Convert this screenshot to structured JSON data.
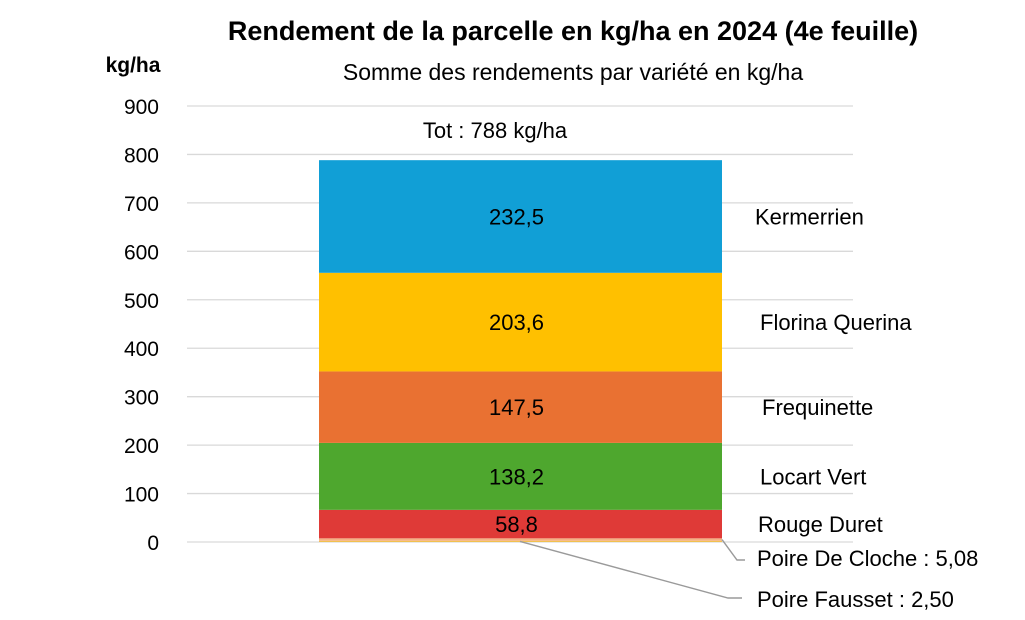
{
  "chart_data": {
    "type": "bar",
    "stacked": true,
    "title": "Rendement de la parcelle en kg/ha en 2024 (4e feuille)",
    "subtitle": "Somme des rendements par variété en kg/ha",
    "ylabel": "kg/ha",
    "ylim": [
      0,
      900
    ],
    "yticks": [
      "0",
      "100",
      "200",
      "300",
      "400",
      "500",
      "600",
      "700",
      "800",
      "900"
    ],
    "grid": true,
    "legend": "right",
    "total_label": "Tot : 788 kg/ha",
    "total": 788,
    "series": [
      {
        "name": "Poire Fausset",
        "value": 2.5,
        "value_label": "",
        "legend_label": "Poire Fausset : 2,50",
        "color": "#F2C14E"
      },
      {
        "name": "Poire De Cloche",
        "value": 5.08,
        "value_label": "",
        "legend_label": "Poire De Cloche : 5,08",
        "color": "#F4B183"
      },
      {
        "name": "Rouge Duret",
        "value": 58.8,
        "value_label": "58,8",
        "legend_label": "Rouge Duret",
        "color": "#DF3A37"
      },
      {
        "name": "Locart Vert",
        "value": 138.2,
        "value_label": "138,2",
        "legend_label": "Locart Vert",
        "color": "#4EA72E"
      },
      {
        "name": "Frequinette",
        "value": 147.5,
        "value_label": "147,5",
        "legend_label": "Frequinette",
        "color": "#E97132"
      },
      {
        "name": "Florina Querina",
        "value": 203.6,
        "value_label": "203,6",
        "legend_label": "Florina Querina",
        "color": "#FFC000"
      },
      {
        "name": "Kermerrien",
        "value": 232.5,
        "value_label": "232,5",
        "legend_label": "Kermerrien",
        "color": "#119FD6"
      }
    ]
  }
}
